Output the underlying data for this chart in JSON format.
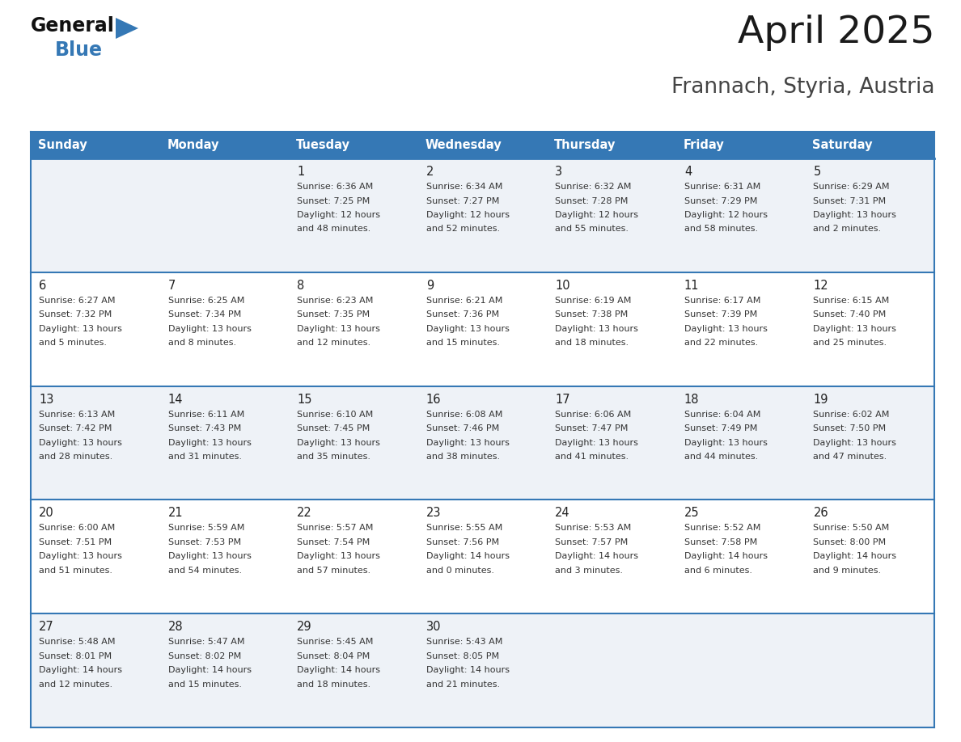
{
  "title": "April 2025",
  "subtitle": "Frannach, Styria, Austria",
  "header_bg": "#3578b5",
  "header_text": "#ffffff",
  "row_bg_odd": "#eef2f7",
  "row_bg_even": "#ffffff",
  "border_color": "#3578b5",
  "text_color": "#222222",
  "info_color": "#333333",
  "days_of_week": [
    "Sunday",
    "Monday",
    "Tuesday",
    "Wednesday",
    "Thursday",
    "Friday",
    "Saturday"
  ],
  "calendar_data": [
    [
      {
        "day": "",
        "sunrise": "",
        "sunset": "",
        "daylight": ""
      },
      {
        "day": "",
        "sunrise": "",
        "sunset": "",
        "daylight": ""
      },
      {
        "day": "1",
        "sunrise": "Sunrise: 6:36 AM",
        "sunset": "Sunset: 7:25 PM",
        "daylight": "Daylight: 12 hours\nand 48 minutes."
      },
      {
        "day": "2",
        "sunrise": "Sunrise: 6:34 AM",
        "sunset": "Sunset: 7:27 PM",
        "daylight": "Daylight: 12 hours\nand 52 minutes."
      },
      {
        "day": "3",
        "sunrise": "Sunrise: 6:32 AM",
        "sunset": "Sunset: 7:28 PM",
        "daylight": "Daylight: 12 hours\nand 55 minutes."
      },
      {
        "day": "4",
        "sunrise": "Sunrise: 6:31 AM",
        "sunset": "Sunset: 7:29 PM",
        "daylight": "Daylight: 12 hours\nand 58 minutes."
      },
      {
        "day": "5",
        "sunrise": "Sunrise: 6:29 AM",
        "sunset": "Sunset: 7:31 PM",
        "daylight": "Daylight: 13 hours\nand 2 minutes."
      }
    ],
    [
      {
        "day": "6",
        "sunrise": "Sunrise: 6:27 AM",
        "sunset": "Sunset: 7:32 PM",
        "daylight": "Daylight: 13 hours\nand 5 minutes."
      },
      {
        "day": "7",
        "sunrise": "Sunrise: 6:25 AM",
        "sunset": "Sunset: 7:34 PM",
        "daylight": "Daylight: 13 hours\nand 8 minutes."
      },
      {
        "day": "8",
        "sunrise": "Sunrise: 6:23 AM",
        "sunset": "Sunset: 7:35 PM",
        "daylight": "Daylight: 13 hours\nand 12 minutes."
      },
      {
        "day": "9",
        "sunrise": "Sunrise: 6:21 AM",
        "sunset": "Sunset: 7:36 PM",
        "daylight": "Daylight: 13 hours\nand 15 minutes."
      },
      {
        "day": "10",
        "sunrise": "Sunrise: 6:19 AM",
        "sunset": "Sunset: 7:38 PM",
        "daylight": "Daylight: 13 hours\nand 18 minutes."
      },
      {
        "day": "11",
        "sunrise": "Sunrise: 6:17 AM",
        "sunset": "Sunset: 7:39 PM",
        "daylight": "Daylight: 13 hours\nand 22 minutes."
      },
      {
        "day": "12",
        "sunrise": "Sunrise: 6:15 AM",
        "sunset": "Sunset: 7:40 PM",
        "daylight": "Daylight: 13 hours\nand 25 minutes."
      }
    ],
    [
      {
        "day": "13",
        "sunrise": "Sunrise: 6:13 AM",
        "sunset": "Sunset: 7:42 PM",
        "daylight": "Daylight: 13 hours\nand 28 minutes."
      },
      {
        "day": "14",
        "sunrise": "Sunrise: 6:11 AM",
        "sunset": "Sunset: 7:43 PM",
        "daylight": "Daylight: 13 hours\nand 31 minutes."
      },
      {
        "day": "15",
        "sunrise": "Sunrise: 6:10 AM",
        "sunset": "Sunset: 7:45 PM",
        "daylight": "Daylight: 13 hours\nand 35 minutes."
      },
      {
        "day": "16",
        "sunrise": "Sunrise: 6:08 AM",
        "sunset": "Sunset: 7:46 PM",
        "daylight": "Daylight: 13 hours\nand 38 minutes."
      },
      {
        "day": "17",
        "sunrise": "Sunrise: 6:06 AM",
        "sunset": "Sunset: 7:47 PM",
        "daylight": "Daylight: 13 hours\nand 41 minutes."
      },
      {
        "day": "18",
        "sunrise": "Sunrise: 6:04 AM",
        "sunset": "Sunset: 7:49 PM",
        "daylight": "Daylight: 13 hours\nand 44 minutes."
      },
      {
        "day": "19",
        "sunrise": "Sunrise: 6:02 AM",
        "sunset": "Sunset: 7:50 PM",
        "daylight": "Daylight: 13 hours\nand 47 minutes."
      }
    ],
    [
      {
        "day": "20",
        "sunrise": "Sunrise: 6:00 AM",
        "sunset": "Sunset: 7:51 PM",
        "daylight": "Daylight: 13 hours\nand 51 minutes."
      },
      {
        "day": "21",
        "sunrise": "Sunrise: 5:59 AM",
        "sunset": "Sunset: 7:53 PM",
        "daylight": "Daylight: 13 hours\nand 54 minutes."
      },
      {
        "day": "22",
        "sunrise": "Sunrise: 5:57 AM",
        "sunset": "Sunset: 7:54 PM",
        "daylight": "Daylight: 13 hours\nand 57 minutes."
      },
      {
        "day": "23",
        "sunrise": "Sunrise: 5:55 AM",
        "sunset": "Sunset: 7:56 PM",
        "daylight": "Daylight: 14 hours\nand 0 minutes."
      },
      {
        "day": "24",
        "sunrise": "Sunrise: 5:53 AM",
        "sunset": "Sunset: 7:57 PM",
        "daylight": "Daylight: 14 hours\nand 3 minutes."
      },
      {
        "day": "25",
        "sunrise": "Sunrise: 5:52 AM",
        "sunset": "Sunset: 7:58 PM",
        "daylight": "Daylight: 14 hours\nand 6 minutes."
      },
      {
        "day": "26",
        "sunrise": "Sunrise: 5:50 AM",
        "sunset": "Sunset: 8:00 PM",
        "daylight": "Daylight: 14 hours\nand 9 minutes."
      }
    ],
    [
      {
        "day": "27",
        "sunrise": "Sunrise: 5:48 AM",
        "sunset": "Sunset: 8:01 PM",
        "daylight": "Daylight: 14 hours\nand 12 minutes."
      },
      {
        "day": "28",
        "sunrise": "Sunrise: 5:47 AM",
        "sunset": "Sunset: 8:02 PM",
        "daylight": "Daylight: 14 hours\nand 15 minutes."
      },
      {
        "day": "29",
        "sunrise": "Sunrise: 5:45 AM",
        "sunset": "Sunset: 8:04 PM",
        "daylight": "Daylight: 14 hours\nand 18 minutes."
      },
      {
        "day": "30",
        "sunrise": "Sunrise: 5:43 AM",
        "sunset": "Sunset: 8:05 PM",
        "daylight": "Daylight: 14 hours\nand 21 minutes."
      },
      {
        "day": "",
        "sunrise": "",
        "sunset": "",
        "daylight": ""
      },
      {
        "day": "",
        "sunrise": "",
        "sunset": "",
        "daylight": ""
      },
      {
        "day": "",
        "sunrise": "",
        "sunset": "",
        "daylight": ""
      }
    ]
  ]
}
